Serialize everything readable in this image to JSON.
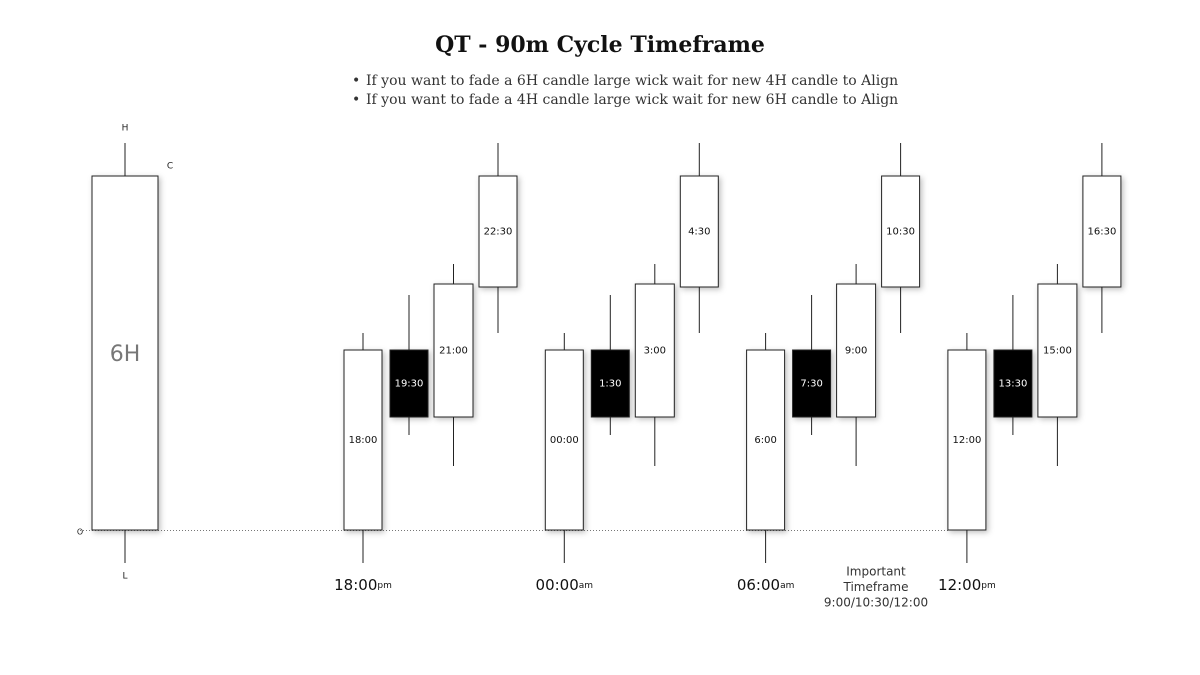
{
  "title": "QT - 90m Cycle Timeframe",
  "notes": [
    "If you want to fade a 6H candle large wick wait for new 4H candle to Align",
    "If you want to fade a 4H candle large wick wait for new 6H candle to Align"
  ],
  "big_candle": {
    "label": "6H",
    "high": "H",
    "close": "C",
    "open": "O",
    "low": "L"
  },
  "groups": [
    {
      "time": "18:00",
      "suffix": "pm",
      "candles": [
        "18:00",
        "19:30",
        "21:00",
        "22:30"
      ]
    },
    {
      "time": "00:00",
      "suffix": "am",
      "candles": [
        "00:00",
        "1:30",
        "3:00",
        "4:30"
      ]
    },
    {
      "time": "06:00",
      "suffix": "am",
      "candles": [
        "6:00",
        "7:30",
        "9:00",
        "10:30"
      ]
    },
    {
      "time": "12:00",
      "suffix": "pm",
      "candles": [
        "12:00",
        "13:30",
        "15:00",
        "16:30"
      ]
    }
  ],
  "annotation": [
    "Important",
    "Timeframe",
    "9:00/10:30/12:00"
  ]
}
